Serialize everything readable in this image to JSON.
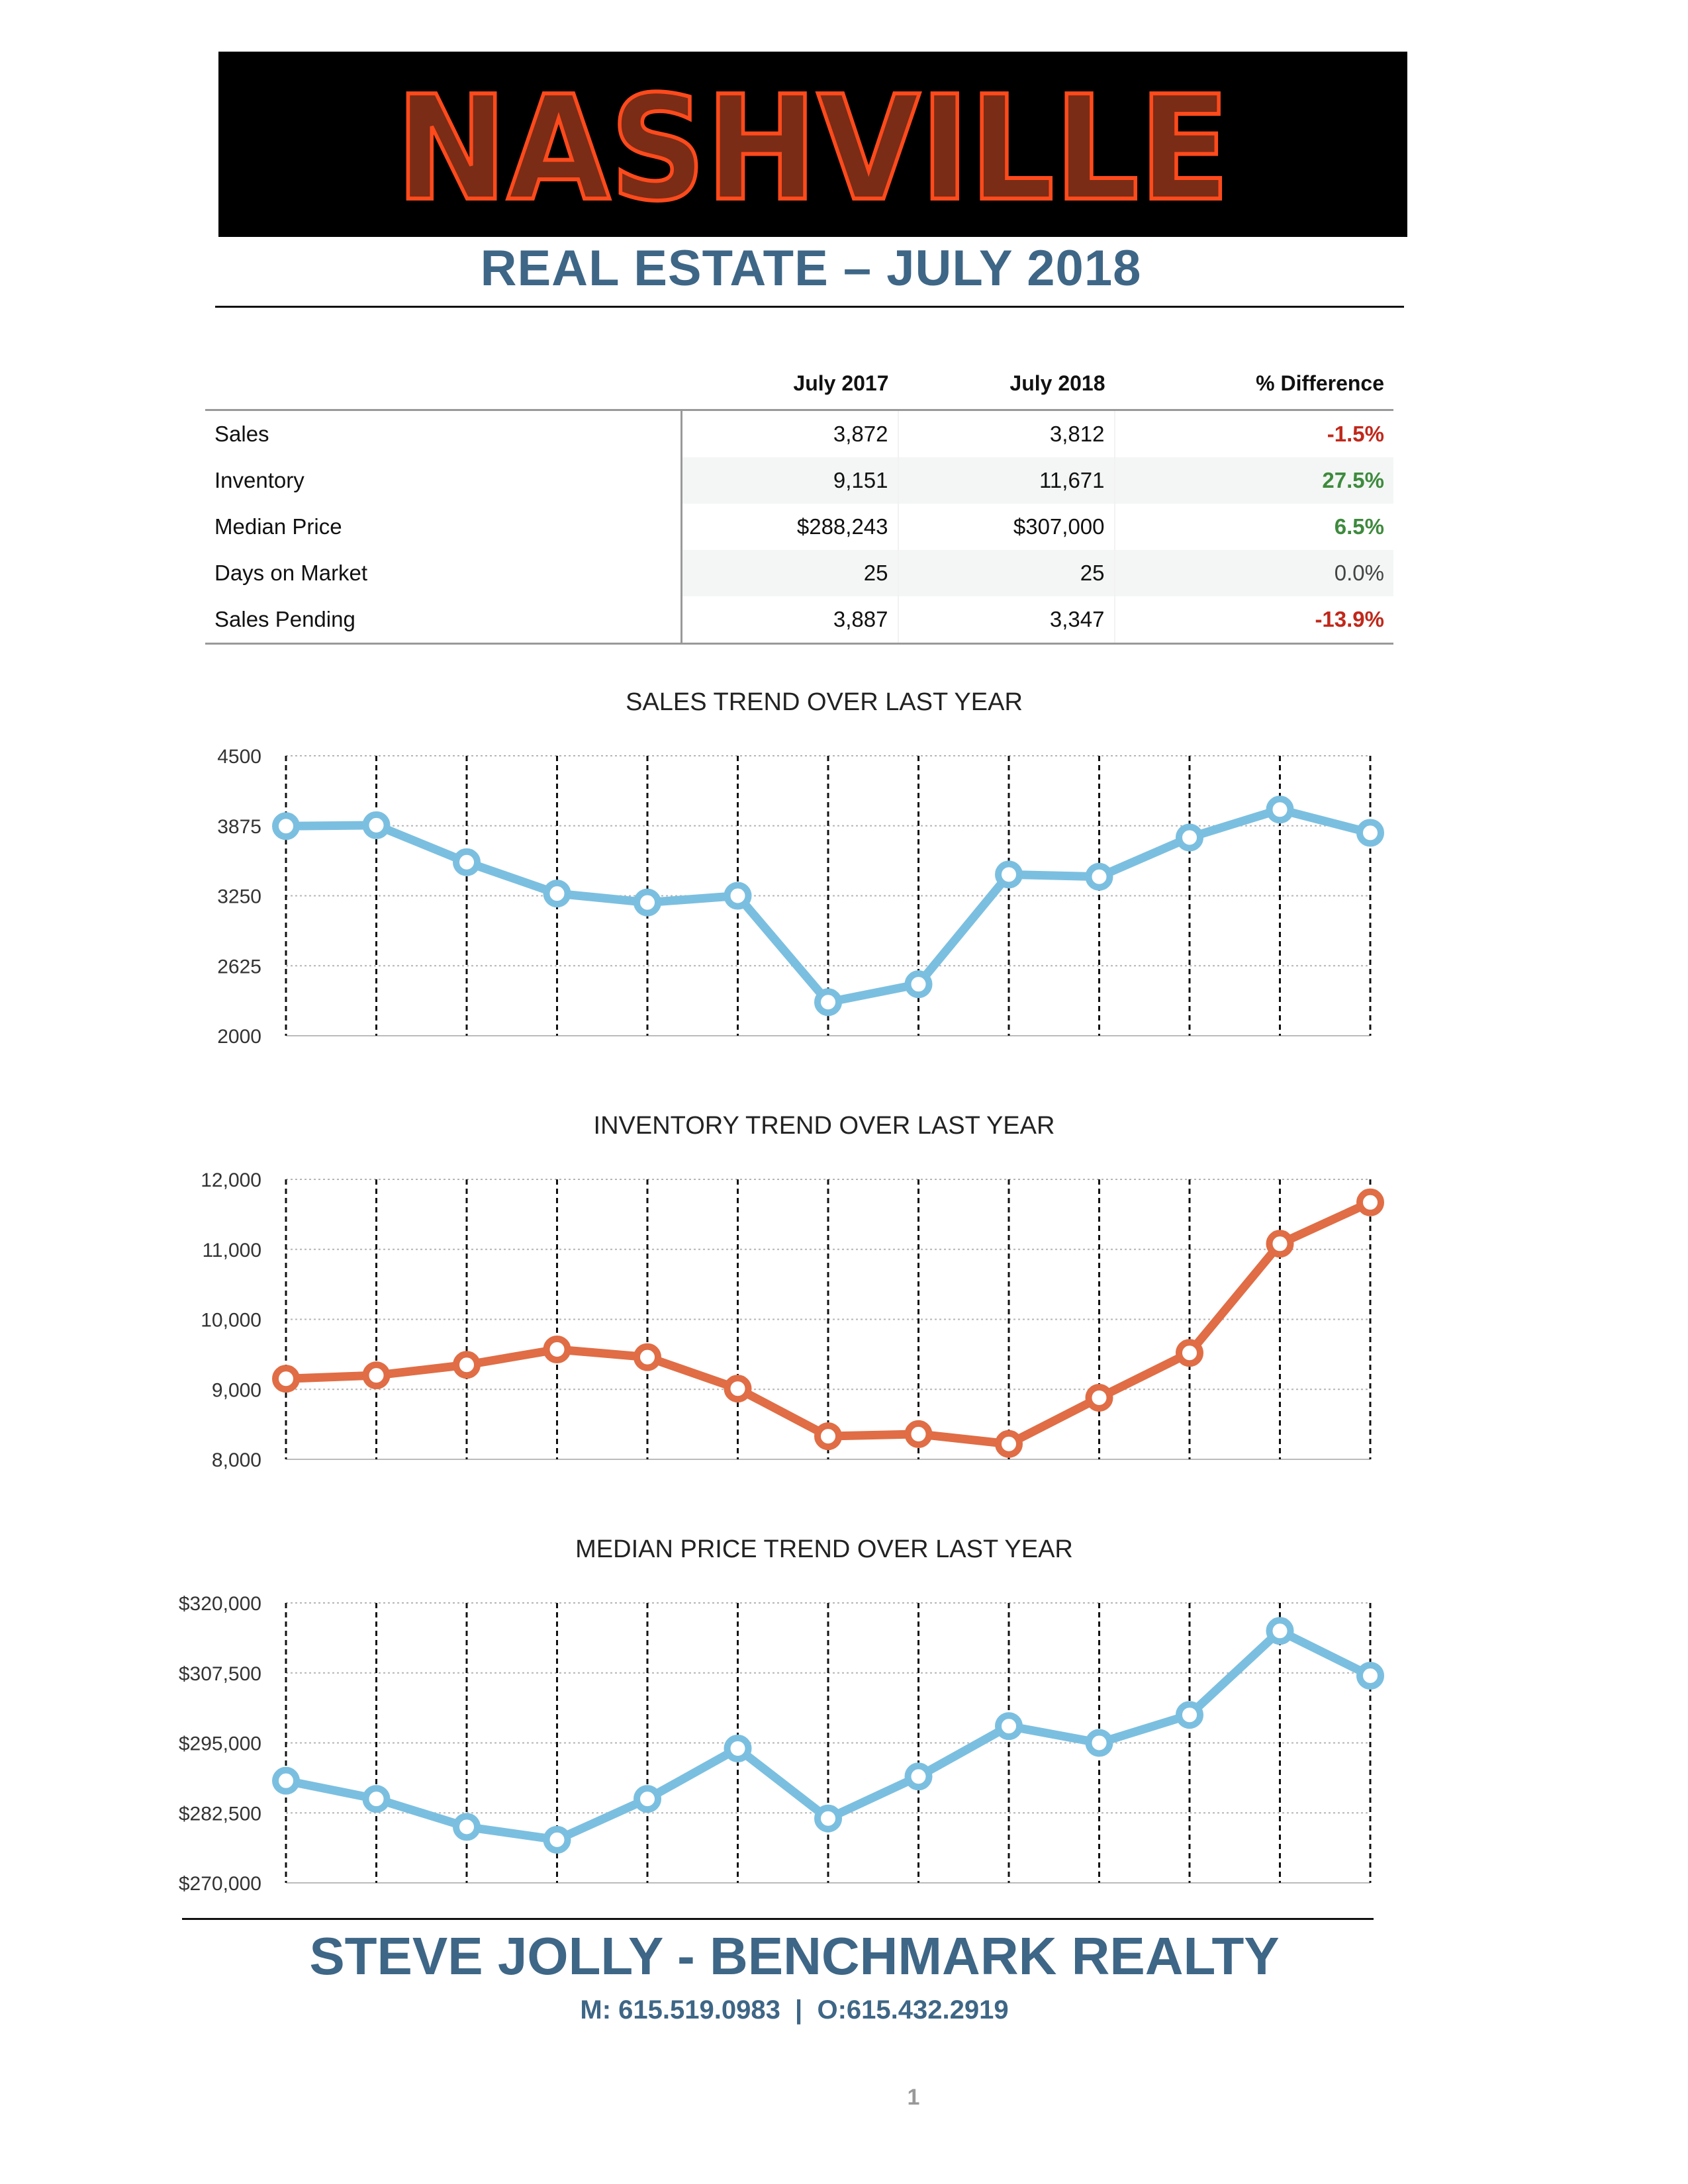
{
  "header": {
    "banner_text": "NASHVILLE",
    "subtitle": "REAL ESTATE – JULY 2018"
  },
  "colors": {
    "title_blue": "#3e6686",
    "neon_fill": "#7a2c16",
    "neon_stroke": "#ff4a1c",
    "negative": "#c0281b",
    "positive": "#3e8a3e",
    "series_blue": "#7bbfe0",
    "series_orange": "#e06d45"
  },
  "table": {
    "headers": [
      "",
      "July 2017",
      "July 2018",
      "% Difference"
    ],
    "rows": [
      {
        "label": "Sales",
        "july_2017": "3,872",
        "july_2018": "3,812",
        "diff": "-1.5%",
        "status": "neg"
      },
      {
        "label": "Inventory",
        "july_2017": "9,151",
        "july_2018": "11,671",
        "diff": "27.5%",
        "status": "pos"
      },
      {
        "label": "Median Price",
        "july_2017": "$288,243",
        "july_2018": "$307,000",
        "diff": "6.5%",
        "status": "pos"
      },
      {
        "label": "Days on Market",
        "july_2017": "25",
        "july_2018": "25",
        "diff": "0.0%",
        "status": "zero"
      },
      {
        "label": "Sales Pending",
        "july_2017": "3,887",
        "july_2018": "3,347",
        "diff": "-13.9%",
        "status": "neg"
      }
    ]
  },
  "chart_data": [
    {
      "type": "line",
      "title": "SALES TREND OVER LAST YEAR",
      "xlabel": "",
      "ylabel": "",
      "ylim": [
        2000,
        4500
      ],
      "yticks": [
        "4500",
        "3875",
        "3250",
        "2625",
        "2000"
      ],
      "grid": true,
      "series": [
        {
          "color": "#7bbfe0",
          "values": [
            3872,
            3880,
            3550,
            3270,
            3190,
            3250,
            2300,
            2460,
            3440,
            3420,
            3770,
            4020,
            3812
          ]
        }
      ]
    },
    {
      "type": "line",
      "title": "INVENTORY TREND OVER LAST YEAR",
      "xlabel": "",
      "ylabel": "",
      "ylim": [
        8000,
        12000
      ],
      "yticks": [
        "12,000",
        "11,000",
        "10,000",
        "9,000",
        "8,000"
      ],
      "grid": true,
      "series": [
        {
          "color": "#e06d45",
          "values": [
            9151,
            9200,
            9350,
            9570,
            9460,
            9010,
            8330,
            8360,
            8220,
            8880,
            9520,
            11080,
            11671
          ]
        }
      ]
    },
    {
      "type": "line",
      "title": "MEDIAN PRICE TREND OVER LAST YEAR",
      "xlabel": "",
      "ylabel": "",
      "ylim": [
        270000,
        320000
      ],
      "yticks": [
        "$320,000",
        "$307,500",
        "$295,000",
        "$282,500",
        "$270,000"
      ],
      "grid": true,
      "series": [
        {
          "color": "#7bbfe0",
          "values": [
            288243,
            285000,
            280000,
            277700,
            285000,
            294000,
            281500,
            289000,
            298000,
            295000,
            300000,
            315000,
            307000
          ]
        }
      ]
    }
  ],
  "footer": {
    "agent": "STEVE JOLLY - BENCHMARK REALTY",
    "contact": "M: 615.519.0983  |  O:615.432.2919",
    "page_number": "1"
  }
}
